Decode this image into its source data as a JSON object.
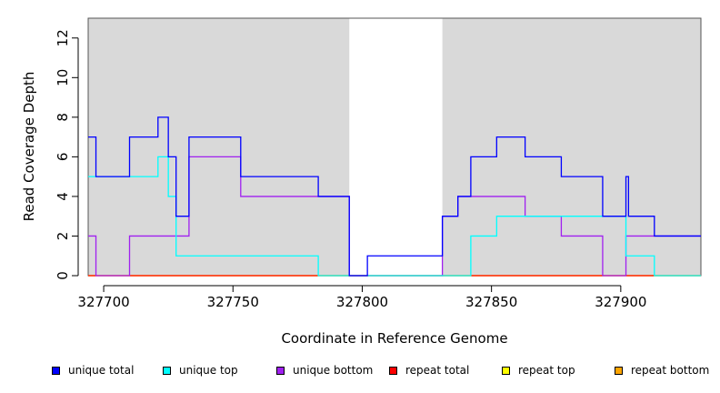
{
  "chart_data": {
    "type": "line",
    "title": "",
    "xlabel": "Coordinate in Reference Genome",
    "ylabel": "Read Coverage Depth",
    "xlim": [
      327694,
      327931
    ],
    "ylim": [
      0,
      13
    ],
    "xticks": [
      327700,
      327750,
      327800,
      327850,
      327900
    ],
    "xtick_labels": [
      "327700",
      "327750",
      "327800",
      "327850",
      "327900"
    ],
    "yticks": [
      0,
      2,
      4,
      6,
      8,
      10,
      12
    ],
    "ytick_labels": [
      "0",
      "2",
      "4",
      "6",
      "8",
      "10",
      "12"
    ],
    "highlight_regions": [
      [
        327694,
        327795
      ],
      [
        327831,
        327931
      ]
    ],
    "legend_position": "bottom",
    "step": true,
    "series": [
      {
        "name": "unique total",
        "color": "#0000ff",
        "x": [
          327694,
          327697,
          327710,
          327721,
          327725,
          327728,
          327733,
          327753,
          327783,
          327795,
          327802,
          327831,
          327837,
          327842,
          327852,
          327863,
          327877,
          327893,
          327902,
          327903,
          327913,
          327931
        ],
        "y": [
          7,
          5,
          7,
          8,
          6,
          3,
          7,
          5,
          4,
          0,
          1,
          3,
          4,
          6,
          7,
          6,
          5,
          3,
          5,
          3,
          2,
          2
        ]
      },
      {
        "name": "unique top",
        "color": "#00ffff",
        "x": [
          327694,
          327697,
          327721,
          327725,
          327728,
          327783,
          327842,
          327852,
          327902,
          327913,
          327931
        ],
        "y": [
          5,
          5,
          6,
          4,
          1,
          0,
          2,
          3,
          1,
          0,
          0
        ]
      },
      {
        "name": "unique bottom",
        "color": "#a020f0",
        "x": [
          327694,
          327697,
          327710,
          327733,
          327753,
          327795,
          327831,
          327837,
          327863,
          327877,
          327893,
          327902,
          327931
        ],
        "y": [
          2,
          0,
          2,
          6,
          4,
          0,
          3,
          4,
          3,
          2,
          0,
          2,
          2
        ]
      },
      {
        "name": "repeat total",
        "color": "#ff0000",
        "x": [
          327694,
          327931
        ],
        "y": [
          0,
          0
        ]
      },
      {
        "name": "repeat top",
        "color": "#ffff00",
        "x": [
          327694,
          327931
        ],
        "y": [
          0,
          0
        ]
      },
      {
        "name": "repeat bottom",
        "color": "#ffa500",
        "x": [
          327694,
          327931
        ],
        "y": [
          0,
          0
        ]
      }
    ]
  },
  "colors": {
    "shade": "#d9d9d9",
    "axis": "#000000"
  }
}
